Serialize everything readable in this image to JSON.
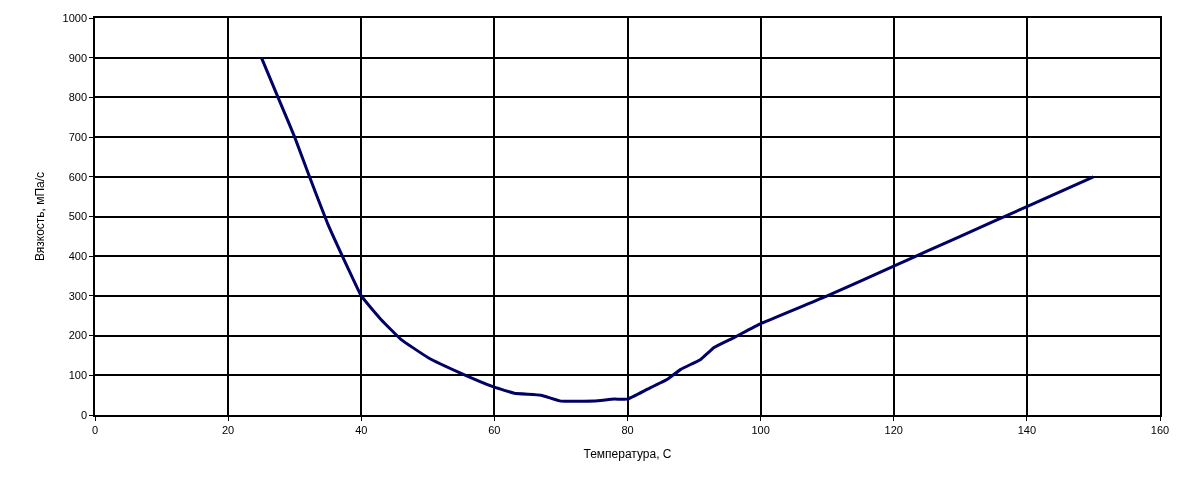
{
  "chart_data": {
    "type": "line",
    "xlabel": "Температура, С",
    "ylabel": "Вязкость, мПа/с",
    "x": [
      25,
      28,
      30,
      32,
      35,
      38,
      40,
      43,
      46,
      50,
      55,
      60,
      63,
      67,
      70,
      75,
      78,
      80,
      83,
      86,
      88,
      91,
      93,
      96,
      100,
      110,
      120,
      130,
      140,
      150
    ],
    "series": [
      {
        "color": "#000066",
        "values": [
          900,
          780,
          700,
          610,
          480,
          370,
          300,
          240,
          190,
          145,
          105,
          70,
          55,
          50,
          35,
          35,
          40,
          40,
          65,
          90,
          115,
          140,
          170,
          195,
          230,
          300,
          375,
          450,
          525,
          600
        ]
      }
    ],
    "xlim": [
      0,
      160
    ],
    "xticks": [
      0,
      20,
      40,
      60,
      80,
      100,
      120,
      140,
      160
    ],
    "ylim": [
      0,
      1000
    ],
    "yticks": [
      0,
      100,
      200,
      300,
      400,
      500,
      600,
      700,
      800,
      900,
      1000
    ],
    "grid": true,
    "legend": false,
    "marker": "none",
    "line_style": "solid"
  }
}
